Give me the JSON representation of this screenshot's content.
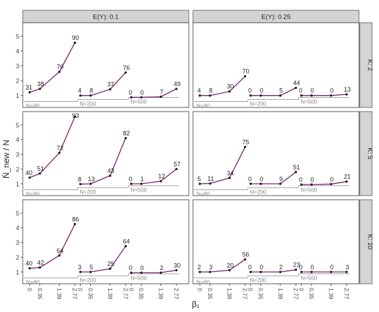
{
  "chart_data": {
    "type": "line",
    "ylabel": "N̄_new / N",
    "xlabel": "β₁",
    "x_tick_labels": [
      "0",
      "0.35",
      "1.39",
      "2.77"
    ],
    "x_values": [
      0,
      0.35,
      1.39,
      2.77
    ],
    "y_ticks": [
      1,
      2,
      3,
      4,
      5
    ],
    "ylim": [
      0.2,
      5.9
    ],
    "col_labels": [
      "E(Y): 0.1",
      "E(Y): 0.25"
    ],
    "row_labels": [
      "K: 2",
      "K: 5",
      "K: 10"
    ],
    "n_labels": [
      "N=80",
      "N=200",
      "N=500"
    ],
    "baseline_gray": [
      0.6,
      0.73,
      0.87
    ],
    "colors": {
      "line": "#7b1f6f",
      "point": "#222222",
      "baseline": "#999999",
      "strip": "#d4d4d4"
    },
    "panels": [
      {
        "col": 0,
        "row": 0,
        "groups": [
          {
            "values": [
              1.22,
              1.45,
              2.6,
              4.55
            ],
            "labels": [
              "31",
              "38",
              "70",
              "90"
            ]
          },
          {
            "values": [
              1.0,
              1.0,
              1.42,
              2.55
            ],
            "labels": [
              "4",
              "8",
              "37",
              "76"
            ]
          },
          {
            "values": [
              0.88,
              0.88,
              0.92,
              1.45
            ],
            "labels": [
              "0",
              "0",
              "7",
              "49"
            ]
          }
        ]
      },
      {
        "col": 1,
        "row": 0,
        "groups": [
          {
            "values": [
              1.0,
              1.0,
              1.28,
              2.3
            ],
            "labels": [
              "4",
              "8",
              "30",
              "70"
            ]
          },
          {
            "values": [
              1.0,
              1.0,
              1.0,
              1.52
            ],
            "labels": [
              "0",
              "0",
              "5",
              "44"
            ]
          },
          {
            "values": [
              1.0,
              1.0,
              1.0,
              1.08
            ],
            "labels": [
              "0",
              "0",
              "0",
              "13"
            ]
          }
        ]
      },
      {
        "col": 0,
        "row": 1,
        "groups": [
          {
            "values": [
              1.42,
              1.7,
              3.1,
              5.55
            ],
            "labels": [
              "40",
              "51",
              "72",
              "93"
            ]
          },
          {
            "values": [
              0.98,
              1.0,
              1.55,
              4.1
            ],
            "labels": [
              "8",
              "13",
              "43",
              "82"
            ]
          },
          {
            "values": [
              1.0,
              1.0,
              1.18,
              2.0
            ],
            "labels": [
              "0",
              "1",
              "12",
              "57"
            ]
          }
        ]
      },
      {
        "col": 1,
        "row": 1,
        "groups": [
          {
            "values": [
              1.0,
              1.02,
              1.4,
              3.5
            ],
            "labels": [
              "5",
              "11",
              "34",
              "75"
            ]
          },
          {
            "values": [
              1.0,
              1.0,
              1.0,
              1.8
            ],
            "labels": [
              "0",
              "0",
              "9",
              "51"
            ]
          },
          {
            "values": [
              0.95,
              0.95,
              0.98,
              1.15
            ],
            "labels": [
              "0",
              "0",
              "0",
              "21"
            ]
          }
        ]
      },
      {
        "col": 0,
        "row": 2,
        "groups": [
          {
            "values": [
              1.25,
              1.3,
              2.12,
              4.25
            ],
            "labels": [
              "40",
              "42",
              "64",
              "86"
            ]
          },
          {
            "values": [
              1.0,
              1.0,
              1.22,
              2.75
            ],
            "labels": [
              "3",
              "5",
              "25",
              "64"
            ]
          },
          {
            "values": [
              0.95,
              0.95,
              0.95,
              1.12
            ],
            "labels": [
              "0",
              "0",
              "2",
              "30"
            ]
          }
        ]
      },
      {
        "col": 1,
        "row": 2,
        "groups": [
          {
            "values": [
              1.0,
              1.0,
              1.12,
              1.85
            ],
            "labels": [
              "2",
              "3",
              "20",
              "56"
            ]
          },
          {
            "values": [
              1.0,
              1.0,
              1.0,
              1.15
            ],
            "labels": [
              "0",
              "0",
              "2",
              "23"
            ]
          },
          {
            "values": [
              1.0,
              1.0,
              1.0,
              1.0
            ],
            "labels": [
              "0",
              "0",
              "0",
              "3"
            ]
          }
        ]
      }
    ]
  }
}
